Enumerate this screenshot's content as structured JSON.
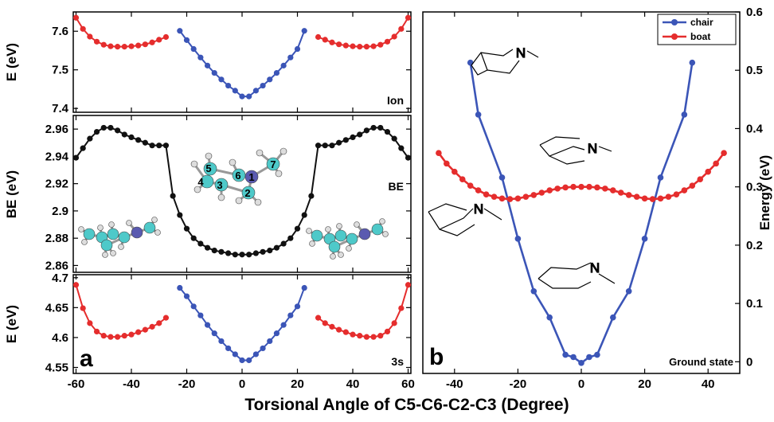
{
  "xlabel": "Torsional Angle of C5-C6-C2-C3 (Degree)",
  "colors": {
    "chair": "#3b55b7",
    "boat": "#e52d2d",
    "be": "#111111",
    "carbon": "#4ec9c9",
    "nitrogen": "#5a5ab0",
    "hydrogen": "#dddddd"
  },
  "panel_a": {
    "letter": "a",
    "ion": {
      "ylabel": "E (eV)",
      "tag": "Ion",
      "yticks": [
        "7.4",
        "7.5",
        "7.6"
      ]
    },
    "be": {
      "ylabel": "BE (eV)",
      "tag": "BE",
      "yticks": [
        "2.86",
        "2.88",
        "2.9",
        "2.92",
        "2.94",
        "2.96"
      ],
      "atom_labels": [
        "1",
        "2",
        "3",
        "4",
        "5",
        "6",
        "7"
      ]
    },
    "s3": {
      "ylabel": "E (eV)",
      "tag": "3s",
      "yticks": [
        "4.55",
        "4.6",
        "4.65",
        "4.7"
      ]
    },
    "xticks": [
      "-60",
      "-40",
      "-20",
      "0",
      "20",
      "40",
      "60"
    ]
  },
  "panel_b": {
    "letter": "b",
    "ylabel": "Energy (eV)",
    "tag": "Ground state",
    "legend": [
      "chair",
      "boat"
    ],
    "yticks": [
      "0",
      "0.1",
      "0.2",
      "0.3",
      "0.4",
      "0.5",
      "0.6"
    ],
    "xticks": [
      "-40",
      "-20",
      "0",
      "20",
      "40"
    ],
    "structure_label": "N"
  },
  "chart_data": [
    {
      "type": "scatter",
      "panel": "a-ion",
      "ylabel": "E (eV)",
      "ylim": [
        7.39,
        7.65
      ],
      "xlim": [
        -61,
        61
      ],
      "series": [
        {
          "name": "chair",
          "color": "#3b55b7",
          "x": [
            -22.5,
            -20,
            -17.5,
            -15,
            -12.5,
            -10,
            -7.5,
            -5,
            -2.5,
            0,
            2.5,
            5,
            7.5,
            10,
            12.5,
            15,
            17.5,
            20,
            22.5
          ],
          "y": [
            7.601,
            7.577,
            7.554,
            7.532,
            7.511,
            7.492,
            7.475,
            7.459,
            7.446,
            7.431,
            7.431,
            7.446,
            7.459,
            7.475,
            7.492,
            7.511,
            7.532,
            7.554,
            7.601
          ]
        },
        {
          "x": [
            -60,
            -57.5,
            -55,
            -52.5,
            -50,
            -47.5,
            -45,
            -42.5,
            -40,
            -37.5,
            -35,
            -32.5,
            -30,
            -27.5
          ],
          "y": [
            7.635,
            7.606,
            7.586,
            7.573,
            7.565,
            7.561,
            7.56,
            7.56,
            7.561,
            7.563,
            7.566,
            7.571,
            7.578,
            7.585
          ],
          "color": "#e52d2d"
        },
        {
          "x": [
            27.5,
            30,
            32.5,
            35,
            37.5,
            40,
            42.5,
            45,
            47.5,
            50,
            52.5,
            55,
            57.5,
            60
          ],
          "y": [
            7.585,
            7.578,
            7.571,
            7.566,
            7.563,
            7.561,
            7.56,
            7.56,
            7.561,
            7.565,
            7.573,
            7.586,
            7.606,
            7.635
          ],
          "color": "#e52d2d"
        }
      ]
    },
    {
      "type": "line",
      "panel": "a-be",
      "ylabel": "BE (eV)",
      "ylim": [
        2.855,
        2.97
      ],
      "xlim": [
        -61,
        61
      ],
      "series": [
        {
          "color": "#111111",
          "x": [
            -60,
            -57.5,
            -55,
            -52.5,
            -50,
            -47.5,
            -45,
            -42.5,
            -40,
            -37.5,
            -35,
            -32.5,
            -30,
            -27.5,
            -25,
            -22.5,
            -20,
            -17.5,
            -15,
            -12.5,
            -10,
            -7.5,
            -5,
            -2.5,
            0,
            2.5,
            5,
            7.5,
            10,
            12.5,
            15,
            17.5,
            20,
            22.5,
            25,
            27.5,
            30,
            32.5,
            35,
            37.5,
            40,
            42.5,
            45,
            47.5,
            50,
            52.5,
            55,
            57.5,
            60
          ],
          "y": [
            2.939,
            2.946,
            2.953,
            2.958,
            2.961,
            2.961,
            2.959,
            2.956,
            2.954,
            2.952,
            2.95,
            2.948,
            2.948,
            2.948,
            2.911,
            2.897,
            2.887,
            2.88,
            2.876,
            2.873,
            2.871,
            2.87,
            2.869,
            2.868,
            2.868,
            2.868,
            2.869,
            2.87,
            2.871,
            2.873,
            2.876,
            2.88,
            2.887,
            2.897,
            2.911,
            2.948,
            2.948,
            2.948,
            2.95,
            2.952,
            2.954,
            2.956,
            2.959,
            2.961,
            2.961,
            2.958,
            2.953,
            2.946,
            2.939
          ]
        }
      ]
    },
    {
      "type": "scatter",
      "panel": "a-3s",
      "ylabel": "E (eV)",
      "ylim": [
        4.54,
        4.705
      ],
      "xlim": [
        -61,
        61
      ],
      "series": [
        {
          "name": "chair",
          "color": "#3b55b7",
          "x": [
            -22.5,
            -20,
            -17.5,
            -15,
            -12.5,
            -10,
            -7.5,
            -5,
            -2.5,
            0,
            2.5,
            5,
            7.5,
            10,
            12.5,
            15,
            17.5,
            20,
            22.5
          ],
          "y": [
            4.683,
            4.669,
            4.652,
            4.637,
            4.621,
            4.607,
            4.594,
            4.582,
            4.572,
            4.562,
            4.562,
            4.572,
            4.582,
            4.594,
            4.607,
            4.621,
            4.637,
            4.652,
            4.683
          ]
        },
        {
          "x": [
            -60,
            -57.5,
            -55,
            -52.5,
            -50,
            -47.5,
            -45,
            -42.5,
            -40,
            -37.5,
            -35,
            -32.5,
            -30,
            -27.5
          ],
          "y": [
            4.688,
            4.649,
            4.624,
            4.61,
            4.603,
            4.601,
            4.601,
            4.603,
            4.605,
            4.609,
            4.613,
            4.618,
            4.624,
            4.633
          ],
          "color": "#e52d2d"
        },
        {
          "x": [
            27.5,
            30,
            32.5,
            35,
            37.5,
            40,
            42.5,
            45,
            47.5,
            50,
            52.5,
            55,
            57.5,
            60
          ],
          "y": [
            4.633,
            4.624,
            4.618,
            4.613,
            4.609,
            4.605,
            4.603,
            4.601,
            4.601,
            4.603,
            4.61,
            4.624,
            4.649,
            4.688
          ],
          "color": "#e52d2d"
        }
      ]
    },
    {
      "type": "line",
      "panel": "b",
      "ylabel": "Energy (eV)",
      "ylim": [
        -0.02,
        0.6
      ],
      "xlim": [
        -50,
        50
      ],
      "series": [
        {
          "name": "chair",
          "color": "#3b55b7",
          "x": [
            -35,
            -32.5,
            -25,
            -20,
            -15,
            -10,
            -5,
            -2.5,
            0,
            2.5,
            5,
            10,
            15,
            20,
            25,
            32.5,
            35
          ],
          "y": [
            0.513,
            0.424,
            0.316,
            0.211,
            0.121,
            0.076,
            0.012,
            0.008,
            -0.002,
            0.008,
            0.012,
            0.076,
            0.121,
            0.211,
            0.316,
            0.424,
            0.513
          ]
        },
        {
          "name": "boat",
          "color": "#e52d2d",
          "x": [
            -45,
            -42.5,
            -40,
            -37.5,
            -35,
            -32.5,
            -30,
            -27.5,
            -25,
            -22.5,
            -20,
            -17.5,
            -15,
            -12.5,
            -10,
            -7.5,
            -5,
            -2.5,
            0,
            2.5,
            5,
            7.5,
            10,
            12.5,
            15,
            17.5,
            20,
            22.5,
            25,
            27.5,
            30,
            32.5,
            35,
            37.5,
            40,
            42.5,
            45
          ],
          "y": [
            0.358,
            0.34,
            0.326,
            0.313,
            0.302,
            0.294,
            0.287,
            0.283,
            0.28,
            0.279,
            0.28,
            0.283,
            0.286,
            0.29,
            0.294,
            0.297,
            0.299,
            0.3,
            0.3,
            0.3,
            0.299,
            0.297,
            0.294,
            0.29,
            0.286,
            0.283,
            0.28,
            0.279,
            0.28,
            0.283,
            0.287,
            0.294,
            0.302,
            0.313,
            0.326,
            0.34,
            0.358
          ]
        }
      ]
    }
  ]
}
